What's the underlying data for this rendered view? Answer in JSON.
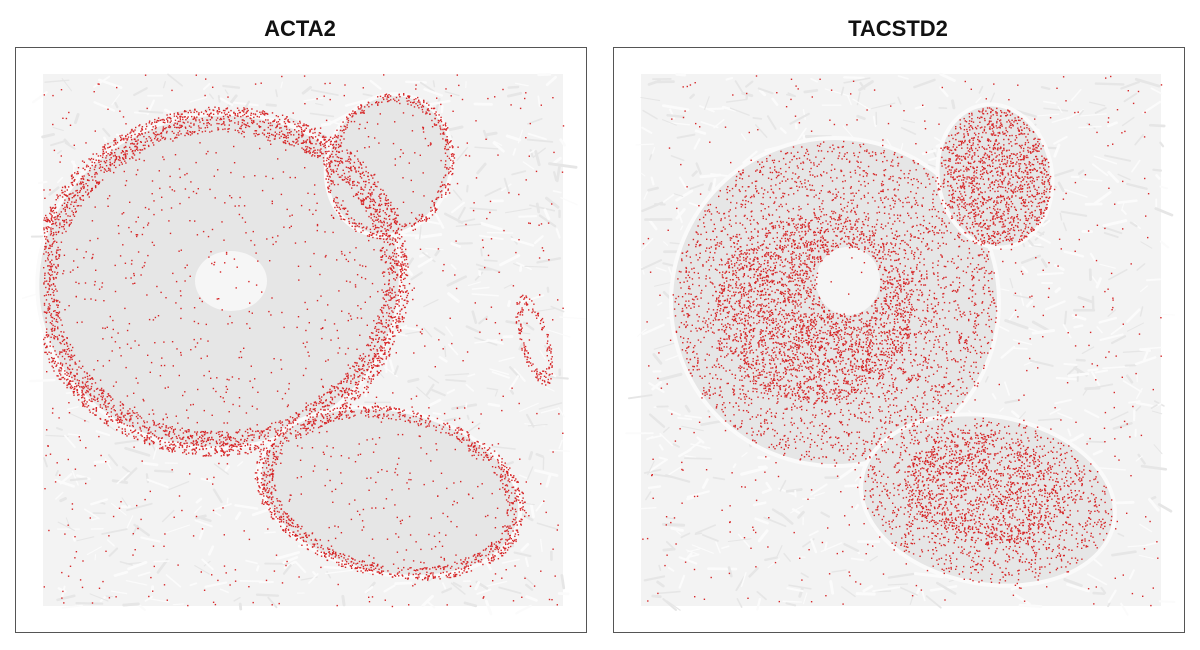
{
  "chart_data": [
    {
      "type": "scatter",
      "title": "ACTA2",
      "description_colors": {
        "background_tissue": "#e8e8e8",
        "points": "#d62728"
      },
      "pattern": "edge-enriched",
      "density": 6000
    },
    {
      "type": "scatter",
      "title": "TACSTD2",
      "description_colors": {
        "background_tissue": "#e8e8e8",
        "points": "#d62728"
      },
      "pattern": "interior-enriched",
      "density": 9000
    }
  ]
}
